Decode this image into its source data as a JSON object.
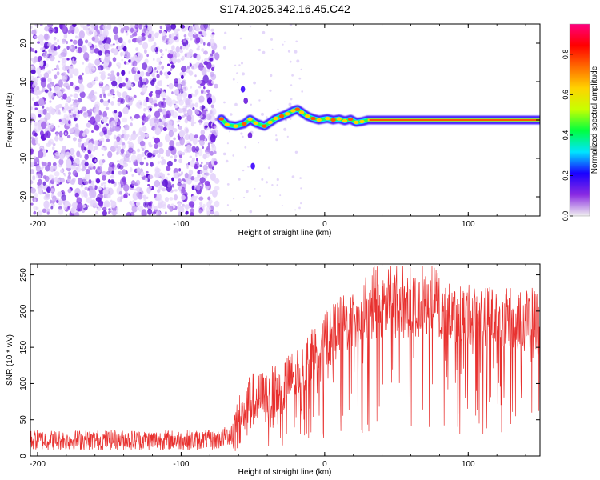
{
  "figure": {
    "title": "S174.2025.342.16.45.C42"
  },
  "chart_data": [
    {
      "type": "heatmap",
      "panel": "spectrogram",
      "xlabel": "Height of straight line (km)",
      "ylabel": "Frequency (Hz)",
      "xlim": [
        -205,
        150
      ],
      "ylim": [
        -25,
        25
      ],
      "x_ticks": [
        -200,
        -100,
        0,
        100
      ],
      "y_ticks": [
        -20,
        -10,
        0,
        10,
        20
      ],
      "x_tick_labels": [
        "-200",
        "-100",
        "0",
        "100"
      ],
      "y_tick_labels": [
        "-20",
        "-10",
        "0",
        "10",
        "20"
      ],
      "noise_region_x": [
        -205,
        -75
      ],
      "signal_onset_x": -75,
      "signal_end_x": 150,
      "doppler_trace": [
        {
          "x": -72,
          "y": 0.3
        },
        {
          "x": -68,
          "y": -1.2
        },
        {
          "x": -62,
          "y": -1.6
        },
        {
          "x": -56,
          "y": -1.0
        },
        {
          "x": -52,
          "y": 0.2
        },
        {
          "x": -48,
          "y": -0.8
        },
        {
          "x": -42,
          "y": -1.6
        },
        {
          "x": -38,
          "y": -0.6
        },
        {
          "x": -34,
          "y": 0.4
        },
        {
          "x": -30,
          "y": 1.0
        },
        {
          "x": -26,
          "y": 1.6
        },
        {
          "x": -22,
          "y": 2.4
        },
        {
          "x": -19,
          "y": 2.8
        },
        {
          "x": -16,
          "y": 2.0
        },
        {
          "x": -12,
          "y": 1.0
        },
        {
          "x": -8,
          "y": 0.4
        },
        {
          "x": -4,
          "y": 0.0
        },
        {
          "x": 2,
          "y": 0.4
        },
        {
          "x": 6,
          "y": 0.0
        },
        {
          "x": 10,
          "y": 0.3
        },
        {
          "x": 14,
          "y": -0.2
        },
        {
          "x": 18,
          "y": 0.2
        },
        {
          "x": 22,
          "y": -0.6
        },
        {
          "x": 26,
          "y": -0.4
        },
        {
          "x": 30,
          "y": 0.0
        },
        {
          "x": 40,
          "y": 0.0
        },
        {
          "x": 80,
          "y": 0.0
        },
        {
          "x": 120,
          "y": 0.0
        },
        {
          "x": 150,
          "y": 0.0
        }
      ],
      "colorbar": {
        "label": "Normalized spectral amplitude",
        "range": [
          0,
          0.95
        ],
        "ticks": [
          0.0,
          0.2,
          0.4,
          0.6,
          0.8
        ],
        "tick_labels": [
          "0.0",
          "0.2",
          "0.4",
          "0.6",
          "0.8"
        ],
        "colormap": [
          "#f0f0f0",
          "#8a2be2",
          "#1a00ff",
          "#00e5ff",
          "#00ff40",
          "#c8ff00",
          "#ffd200",
          "#ff6a00",
          "#ff0000",
          "#ff0080"
        ]
      }
    },
    {
      "type": "line",
      "panel": "snr",
      "xlabel": "Height of straight line (km)",
      "ylabel": "SNR (10 * v/v)",
      "xlim": [
        -205,
        150
      ],
      "ylim": [
        0,
        265
      ],
      "x_ticks": [
        -200,
        -100,
        0,
        100
      ],
      "y_ticks": [
        0,
        50,
        100,
        150,
        200,
        250
      ],
      "x_tick_labels": [
        "-200",
        "-100",
        "0",
        "100"
      ],
      "y_tick_labels": [
        "0",
        "50",
        "100",
        "150",
        "200",
        "250"
      ],
      "line_color": "#e8312f",
      "series": [
        {
          "name": "SNR",
          "trend": [
            {
              "x": -205,
              "y": 22
            },
            {
              "x": -150,
              "y": 22
            },
            {
              "x": -100,
              "y": 22
            },
            {
              "x": -75,
              "y": 22
            },
            {
              "x": -65,
              "y": 30
            },
            {
              "x": -60,
              "y": 50
            },
            {
              "x": -55,
              "y": 65
            },
            {
              "x": -50,
              "y": 78
            },
            {
              "x": -45,
              "y": 80
            },
            {
              "x": -40,
              "y": 82
            },
            {
              "x": -30,
              "y": 95
            },
            {
              "x": -20,
              "y": 112
            },
            {
              "x": -10,
              "y": 135
            },
            {
              "x": 0,
              "y": 160
            },
            {
              "x": 10,
              "y": 178
            },
            {
              "x": 20,
              "y": 188
            },
            {
              "x": 30,
              "y": 198
            },
            {
              "x": 40,
              "y": 203
            },
            {
              "x": 50,
              "y": 205
            },
            {
              "x": 60,
              "y": 205
            },
            {
              "x": 70,
              "y": 203
            },
            {
              "x": 80,
              "y": 200
            },
            {
              "x": 90,
              "y": 198
            },
            {
              "x": 100,
              "y": 195
            },
            {
              "x": 110,
              "y": 193
            },
            {
              "x": 120,
              "y": 191
            },
            {
              "x": 130,
              "y": 190
            },
            {
              "x": 140,
              "y": 190
            },
            {
              "x": 150,
              "y": 190
            }
          ],
          "peak_y": 262
        }
      ]
    }
  ]
}
